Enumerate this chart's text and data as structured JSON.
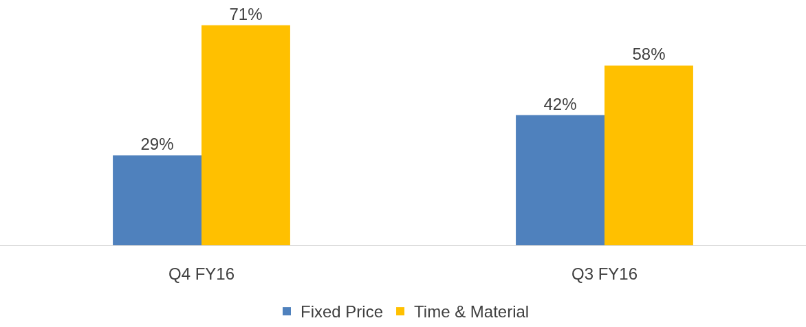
{
  "chart_data": {
    "type": "bar",
    "categories": [
      "Q4 FY16",
      "Q3 FY16"
    ],
    "series": [
      {
        "name": "Fixed Price",
        "color": "#4f81bd",
        "values": [
          29,
          42
        ],
        "value_labels": [
          "29%",
          "42%"
        ]
      },
      {
        "name": "Time & Material",
        "color": "#ffc000",
        "values": [
          71,
          58
        ],
        "value_labels": [
          "71%",
          "58%"
        ]
      }
    ],
    "tick_labels": "x",
    "legend": "bottom"
  }
}
